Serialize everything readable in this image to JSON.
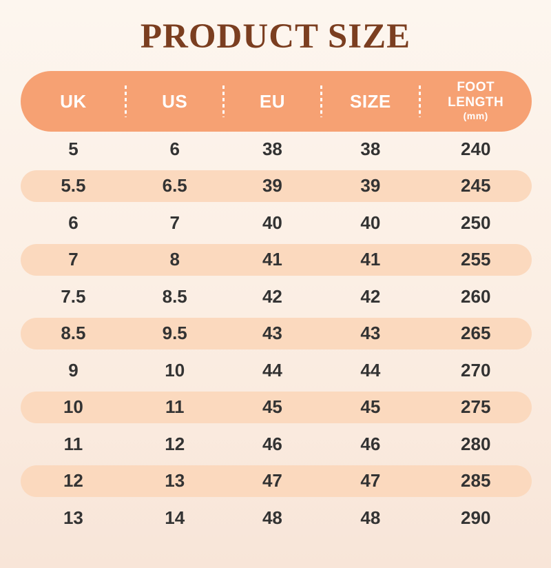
{
  "page": {
    "title": "PRODUCT SIZE"
  },
  "chart_data": {
    "type": "table",
    "title": "PRODUCT SIZE",
    "columns": [
      "UK",
      "US",
      "EU",
      "SIZE",
      "FOOT LENGTH (mm)"
    ],
    "rows": [
      [
        "5",
        "6",
        "38",
        "38",
        "240"
      ],
      [
        "5.5",
        "6.5",
        "39",
        "39",
        "245"
      ],
      [
        "6",
        "7",
        "40",
        "40",
        "250"
      ],
      [
        "7",
        "8",
        "41",
        "41",
        "255"
      ],
      [
        "7.5",
        "8.5",
        "42",
        "42",
        "260"
      ],
      [
        "8.5",
        "9.5",
        "43",
        "43",
        "265"
      ],
      [
        "9",
        "10",
        "44",
        "44",
        "270"
      ],
      [
        "10",
        "11",
        "45",
        "45",
        "275"
      ],
      [
        "11",
        "12",
        "46",
        "46",
        "280"
      ],
      [
        "12",
        "13",
        "47",
        "47",
        "285"
      ],
      [
        "13",
        "14",
        "48",
        "48",
        "290"
      ]
    ],
    "layout": {
      "header_style": "rounded-pill",
      "zebra_striping": "every-second-row"
    }
  },
  "table": {
    "headers": [
      "UK",
      "US",
      "EU",
      "SIZE",
      "FOOT LENGTH"
    ],
    "foot_unit": "(mm)"
  },
  "colors": {
    "header_bg": "#F6A173",
    "header_text": "#FFFFFF",
    "stripe_bg": "#FBD9BE",
    "cell_text": "#333333",
    "title_color": "#7B3E20",
    "bg_top": "#FDF6EF",
    "bg_mid": "#FBEEE3",
    "bg_bottom": "#F8E5D8"
  }
}
